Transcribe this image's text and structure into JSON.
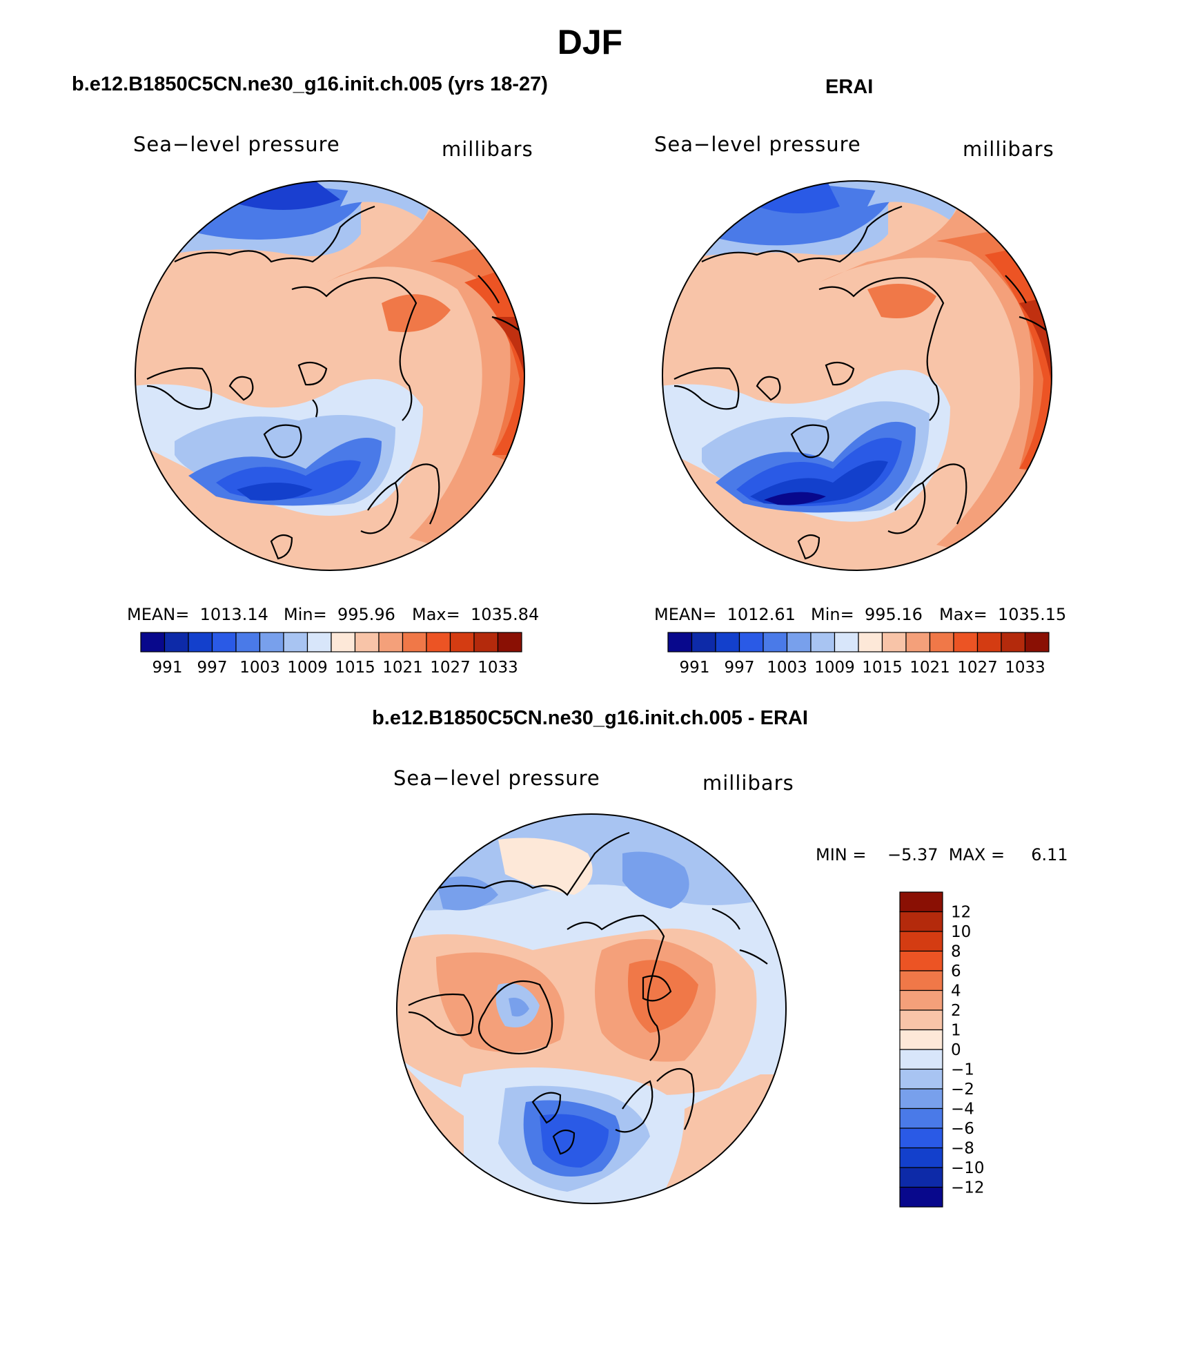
{
  "season": "DJF",
  "panels": [
    {
      "title": "b.e12.B1850C5CN.ne30_g16.init.ch.005 (yrs 18-27)",
      "left_label": "Sea−level pressure",
      "right_label": "millibars",
      "stats": {
        "mean": "MEAN=  1013.14",
        "min": "Min=  995.96",
        "max": "Max=  1035.84"
      }
    },
    {
      "title": "ERAI",
      "left_label": "Sea−level pressure",
      "right_label": "millibars",
      "stats": {
        "mean": "MEAN=  1012.61",
        "min": "Min=  995.16",
        "max": "Max=  1035.15"
      }
    },
    {
      "title": "b.e12.B1850C5CN.ne30_g16.init.ch.005 - ERAI",
      "left_label": "Sea−level pressure",
      "right_label": "millibars",
      "stats": {
        "min_max": "MIN =    −5.37  MAX =     6.11"
      }
    }
  ],
  "abs_colorbar": {
    "labels": [
      "991",
      "997",
      "1003",
      "1009",
      "1015",
      "1021",
      "1027",
      "1033"
    ],
    "colors": [
      "#08088c",
      "#0d2aa8",
      "#1340cc",
      "#2a5ae6",
      "#4a7ae8",
      "#78a0ec",
      "#a8c4f2",
      "#d8e6fa",
      "#fde8d8",
      "#f8c4a8",
      "#f4a07a",
      "#f07848",
      "#ec5424",
      "#d43c12",
      "#b42a0c",
      "#8a1004"
    ]
  },
  "diff_colorbar": {
    "labels": [
      "12",
      "10",
      "8",
      "6",
      "4",
      "2",
      "1",
      "0",
      "−1",
      "−2",
      "−4",
      "−6",
      "−8",
      "−10",
      "−12"
    ],
    "colors": [
      "#8a1004",
      "#b42a0c",
      "#d43c12",
      "#ec5424",
      "#f07848",
      "#f4a07a",
      "#f8c4a8",
      "#fde8d8",
      "#d8e6fa",
      "#a8c4f2",
      "#78a0ec",
      "#4a7ae8",
      "#2a5ae6",
      "#1340cc",
      "#0d2aa8",
      "#08088c"
    ]
  },
  "map_fills": {
    "deep_blue": "#1a3fd0",
    "mid_blue": "#4a7ae8",
    "light_blue": "#a8c4f2",
    "pale_blue": "#d8e6fa",
    "pale_orange": "#fde8d8",
    "light_orange": "#f8c4a8",
    "mid_orange": "#f4a07a",
    "orange": "#f07848",
    "red_orange": "#ec5424",
    "dark_red": "#c03010"
  }
}
